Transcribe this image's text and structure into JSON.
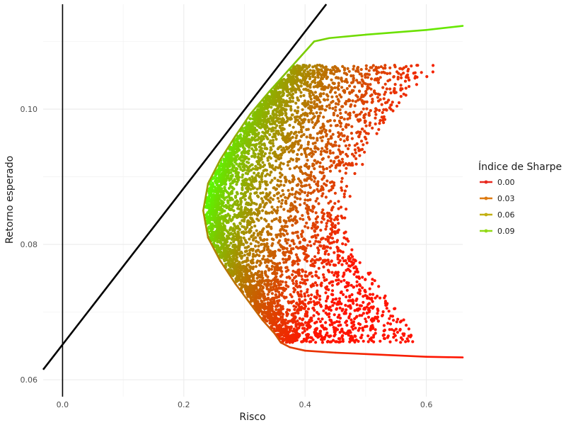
{
  "chart_data": {
    "type": "scatter",
    "title": "",
    "xlabel": "Risco",
    "ylabel": "Retorno esperado",
    "xlim": [
      -0.032,
      0.66
    ],
    "ylim": [
      0.0575,
      0.1155
    ],
    "x_ticks": [
      0.0,
      0.2,
      0.4,
      0.6
    ],
    "x_tick_labels": [
      "0.0",
      "0.2",
      "0.4",
      "0.6"
    ],
    "y_ticks": [
      0.06,
      0.08,
      0.1
    ],
    "y_tick_labels": [
      "0.06",
      "0.08",
      "0.10"
    ],
    "grid": true,
    "vline_x": 0.0,
    "capital_market_line": {
      "x": [
        -0.032,
        0.435
      ],
      "y": [
        0.0615,
        0.1155
      ]
    },
    "frontier_min_variance": {
      "risk": 0.232,
      "return": 0.085
    },
    "legend": {
      "title": "Índice de Sharpe",
      "position": "right",
      "entries": [
        {
          "label": "0.00",
          "color": "#e8281e"
        },
        {
          "label": "0.03",
          "color": "#dd7a10"
        },
        {
          "label": "0.06",
          "color": "#c2b012"
        },
        {
          "label": "0.09",
          "color": "#92d916"
        }
      ]
    },
    "colorscale": {
      "low": "#ff1a00",
      "high": "#55ff00"
    },
    "frontier_upper": {
      "x": [
        0.232,
        0.24,
        0.26,
        0.285,
        0.31,
        0.34,
        0.37,
        0.395,
        0.415,
        0.44,
        0.5,
        0.6,
        0.66
      ],
      "y": [
        0.085,
        0.089,
        0.0925,
        0.096,
        0.0993,
        0.1025,
        0.1055,
        0.108,
        0.11,
        0.1105,
        0.111,
        0.1117,
        0.1123
      ]
    },
    "frontier_lower": {
      "x": [
        0.232,
        0.24,
        0.26,
        0.285,
        0.31,
        0.33,
        0.35,
        0.36,
        0.375,
        0.4,
        0.45,
        0.5,
        0.6,
        0.66
      ],
      "y": [
        0.085,
        0.081,
        0.0776,
        0.0742,
        0.0712,
        0.0688,
        0.0668,
        0.0655,
        0.0648,
        0.0643,
        0.064,
        0.0638,
        0.0634,
        0.0633
      ]
    },
    "portfolio_cloud": {
      "count": 5200,
      "risk_range": [
        0.232,
        0.63
      ],
      "return_range": [
        0.0655,
        0.108
      ]
    }
  }
}
